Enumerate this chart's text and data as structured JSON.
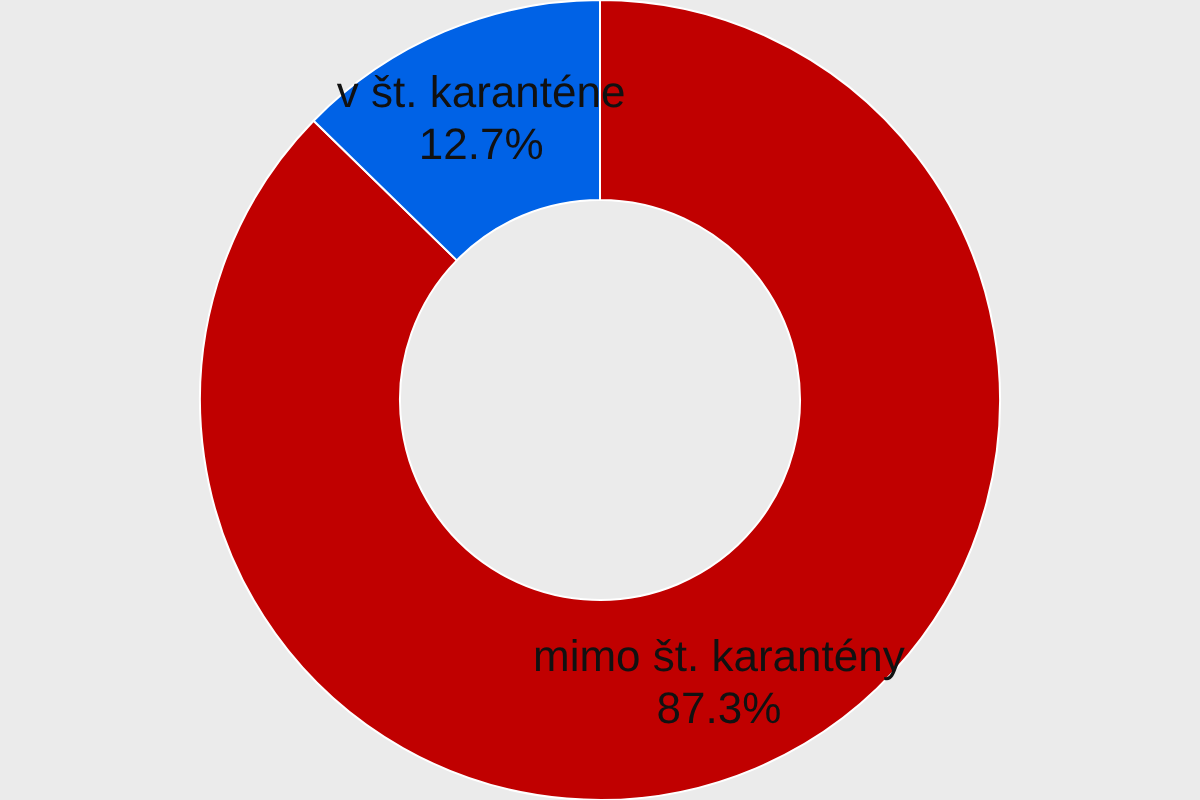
{
  "chart_data": {
    "type": "donut",
    "categories": [
      "mimo št. karantény",
      "v št. karanténe"
    ],
    "values": [
      87.3,
      12.7
    ],
    "colors": [
      "#c00000",
      "#0062e6"
    ],
    "value_labels": [
      "87.3%",
      "12.7%"
    ],
    "legend": false
  }
}
